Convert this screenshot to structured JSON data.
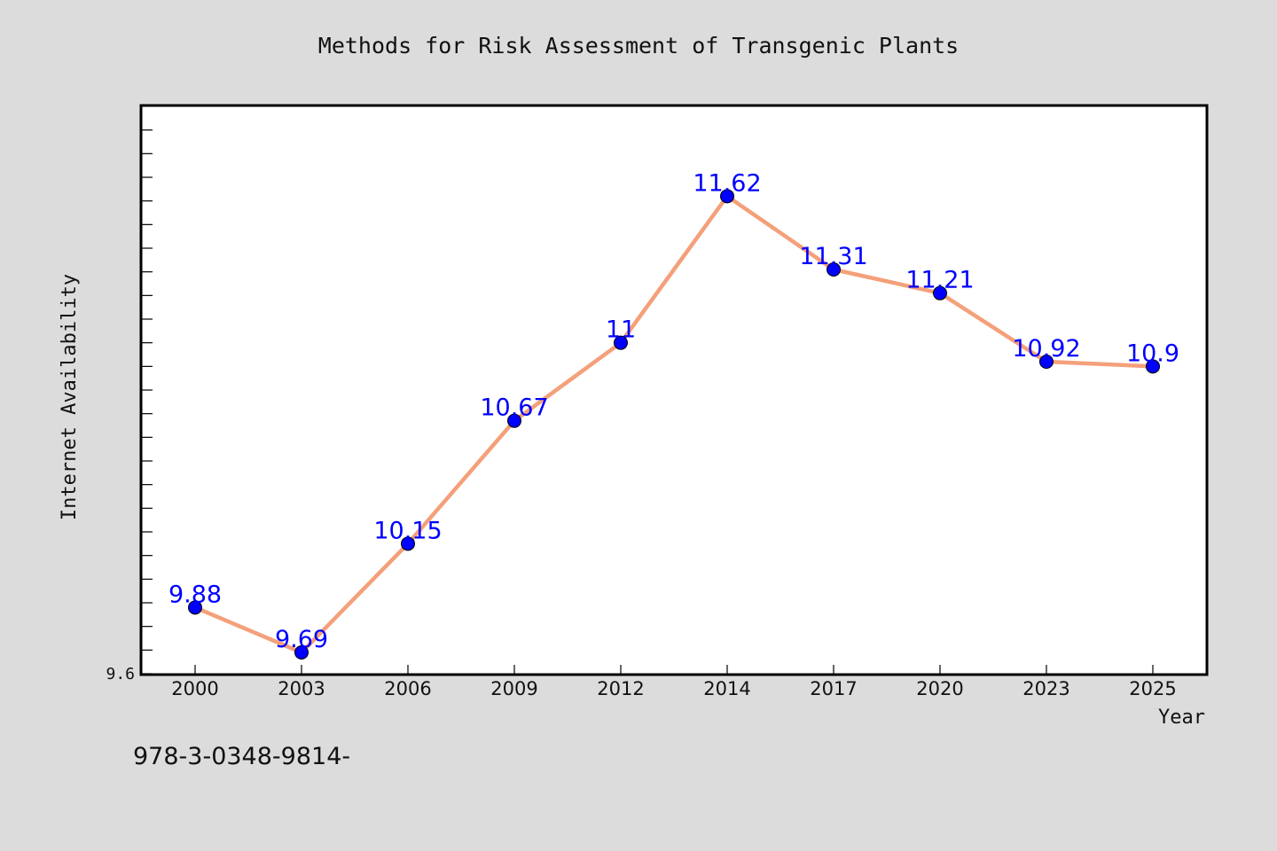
{
  "chart_data": {
    "type": "line",
    "title": "Methods for Risk Assessment of Transgenic Plants",
    "xlabel": "Year",
    "ylabel": "Internet Availability",
    "categories": [
      "2000",
      "2003",
      "2006",
      "2009",
      "2012",
      "2014",
      "2017",
      "2020",
      "2023",
      "2025"
    ],
    "series": [
      {
        "values": [
          9.88,
          9.69,
          10.15,
          10.67,
          11,
          11.62,
          11.31,
          11.21,
          10.92,
          10.9
        ],
        "labels": [
          "9.88",
          "9.69",
          "10.15",
          "10.67",
          "11",
          "11.62",
          "11.31",
          "11.21",
          "10.92",
          "10.9"
        ]
      }
    ],
    "ylim": [
      9.6,
      12.0
    ],
    "y_tick_labels": [
      "9.6"
    ],
    "grid": false,
    "legend": "none",
    "colors": {
      "line": "#f4a07a",
      "marker": "#0000ff",
      "label": "#0000ff",
      "background": "#dcdcdc",
      "plot_background": "#ffffff"
    }
  },
  "footnote": "978-3-0348-9814-"
}
